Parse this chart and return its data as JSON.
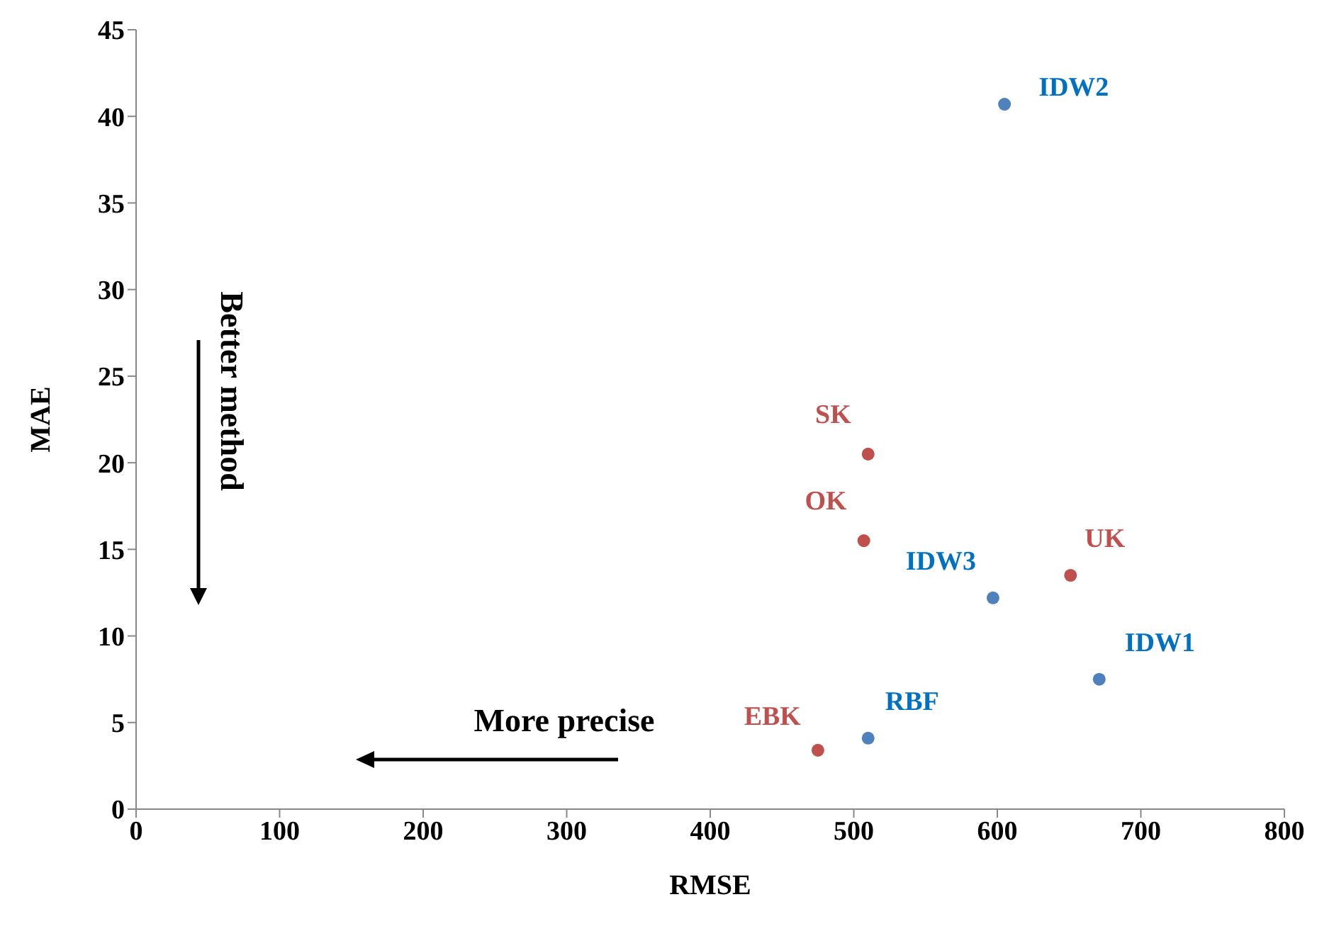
{
  "chart_data": {
    "type": "scatter",
    "xlabel": "RMSE",
    "ylabel": "MAE",
    "xlim": [
      0,
      800
    ],
    "xticks": [
      0,
      100,
      200,
      300,
      400,
      500,
      600,
      700,
      800
    ],
    "ylim": [
      0,
      45
    ],
    "yticks": [
      0,
      5,
      10,
      15,
      20,
      25,
      30,
      35,
      40,
      45
    ],
    "grid": false,
    "legend": false,
    "marker": "circle",
    "series": [
      {
        "color": "#c0504d",
        "x": [
          510,
          507,
          651,
          475
        ],
        "values": [
          20.5,
          15.5,
          13.5,
          3.4
        ]
      },
      {
        "color": "#4f81bd",
        "x": [
          605,
          597,
          671,
          510
        ],
        "values": [
          40.7,
          12.2,
          7.5,
          4.1
        ]
      }
    ],
    "annotations": [
      {
        "text": "SK",
        "x": 510,
        "y": 20.5
      },
      {
        "text": "OK",
        "x": 507,
        "y": 15.5
      },
      {
        "text": "UK",
        "x": 651,
        "y": 13.5
      },
      {
        "text": "EBK",
        "x": 475,
        "y": 3.4
      },
      {
        "text": "IDW2",
        "x": 605,
        "y": 40.7
      },
      {
        "text": "IDW3",
        "x": 597,
        "y": 12.2
      },
      {
        "text": "IDW1",
        "x": 671,
        "y": 7.5
      },
      {
        "text": "RBF",
        "x": 510,
        "y": 4.1
      },
      "Better method",
      "More precise"
    ]
  }
}
